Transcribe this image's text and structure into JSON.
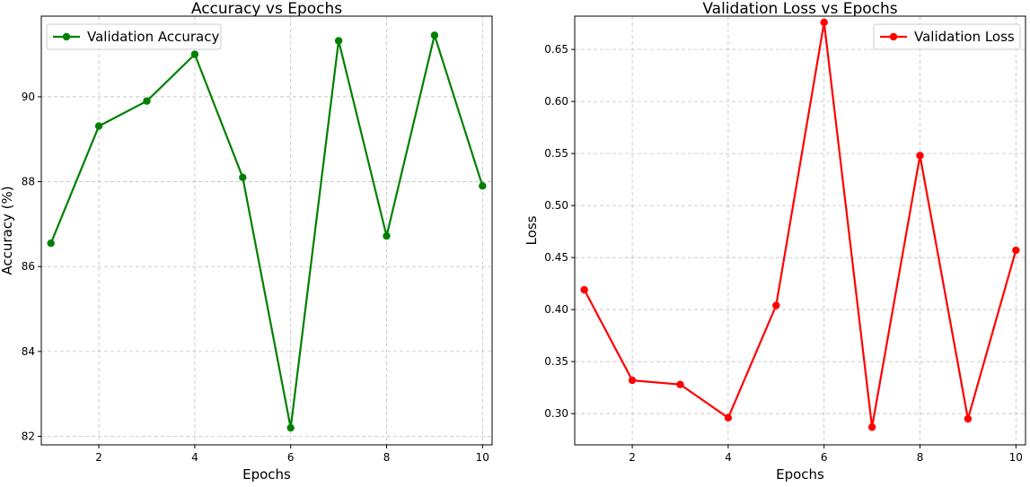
{
  "chart_data": [
    {
      "type": "line",
      "title": "Accuracy vs Epochs",
      "xlabel": "Epochs",
      "ylabel": "Accuracy (%)",
      "xlim": [
        0.8,
        10.2
      ],
      "ylim": [
        81.8,
        91.9
      ],
      "xticks": [
        2,
        4,
        6,
        8,
        10
      ],
      "yticks": [
        82,
        84,
        86,
        88,
        90
      ],
      "ytick_decimals": 0,
      "grid": true,
      "legend_position": "upper-left",
      "series": [
        {
          "name": "Validation Accuracy",
          "color": "#008000",
          "x": [
            1,
            2,
            3,
            4,
            5,
            6,
            7,
            8,
            9,
            10
          ],
          "y": [
            86.55,
            89.31,
            89.9,
            91.0,
            88.1,
            82.2,
            91.32,
            86.72,
            91.45,
            87.9
          ]
        }
      ]
    },
    {
      "type": "line",
      "title": "Validation Loss vs Epochs",
      "xlabel": "Epochs",
      "ylabel": "Loss",
      "xlim": [
        0.8,
        10.2
      ],
      "ylim": [
        0.27,
        0.682
      ],
      "xticks": [
        2,
        4,
        6,
        8,
        10
      ],
      "yticks": [
        0.3,
        0.35,
        0.4,
        0.45,
        0.5,
        0.55,
        0.6,
        0.65
      ],
      "ytick_decimals": 2,
      "grid": true,
      "legend_position": "upper-right",
      "series": [
        {
          "name": "Validation Loss",
          "color": "#ff0000",
          "x": [
            1,
            2,
            3,
            4,
            5,
            6,
            7,
            8,
            9,
            10
          ],
          "y": [
            0.419,
            0.332,
            0.328,
            0.296,
            0.404,
            0.676,
            0.287,
            0.548,
            0.295,
            0.457
          ]
        }
      ]
    }
  ]
}
